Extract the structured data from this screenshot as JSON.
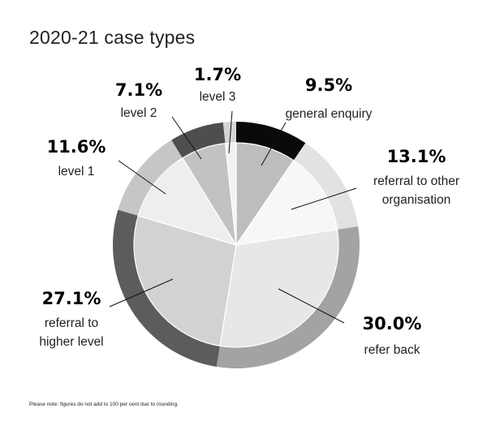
{
  "chart_data": {
    "type": "pie",
    "title": "2020-21 case types",
    "slices": [
      {
        "value": 9.5,
        "pct_label": "9.5%",
        "label_lines": [
          "general enquiry"
        ],
        "ring": "#0a0a0a",
        "inner": "#bdbdbd"
      },
      {
        "value": 13.1,
        "pct_label": "13.1%",
        "label_lines": [
          "referral to other",
          "organisation"
        ],
        "ring": "#e2e2e2",
        "inner": "#f7f7f7"
      },
      {
        "value": 30.0,
        "pct_label": "30.0%",
        "label_lines": [
          "refer back"
        ],
        "ring": "#a3a3a3",
        "inner": "#e7e7e7"
      },
      {
        "value": 27.1,
        "pct_label": "27.1%",
        "label_lines": [
          "referral to",
          "higher level"
        ],
        "ring": "#5c5c5c",
        "inner": "#d2d2d2"
      },
      {
        "value": 11.6,
        "pct_label": "11.6%",
        "label_lines": [
          "level 1"
        ],
        "ring": "#c6c6c6",
        "inner": "#eeeeee"
      },
      {
        "value": 7.1,
        "pct_label": "7.1%",
        "label_lines": [
          "level 2"
        ],
        "ring": "#4e4e4e",
        "inner": "#c2c2c2"
      },
      {
        "value": 1.7,
        "pct_label": "1.7%",
        "label_lines": [
          "level 3"
        ],
        "ring": "#d5d5d5",
        "inner": "#f2f2f2"
      }
    ]
  },
  "footnote": "Please note: figures do not add to 100 per cent due to rounding."
}
